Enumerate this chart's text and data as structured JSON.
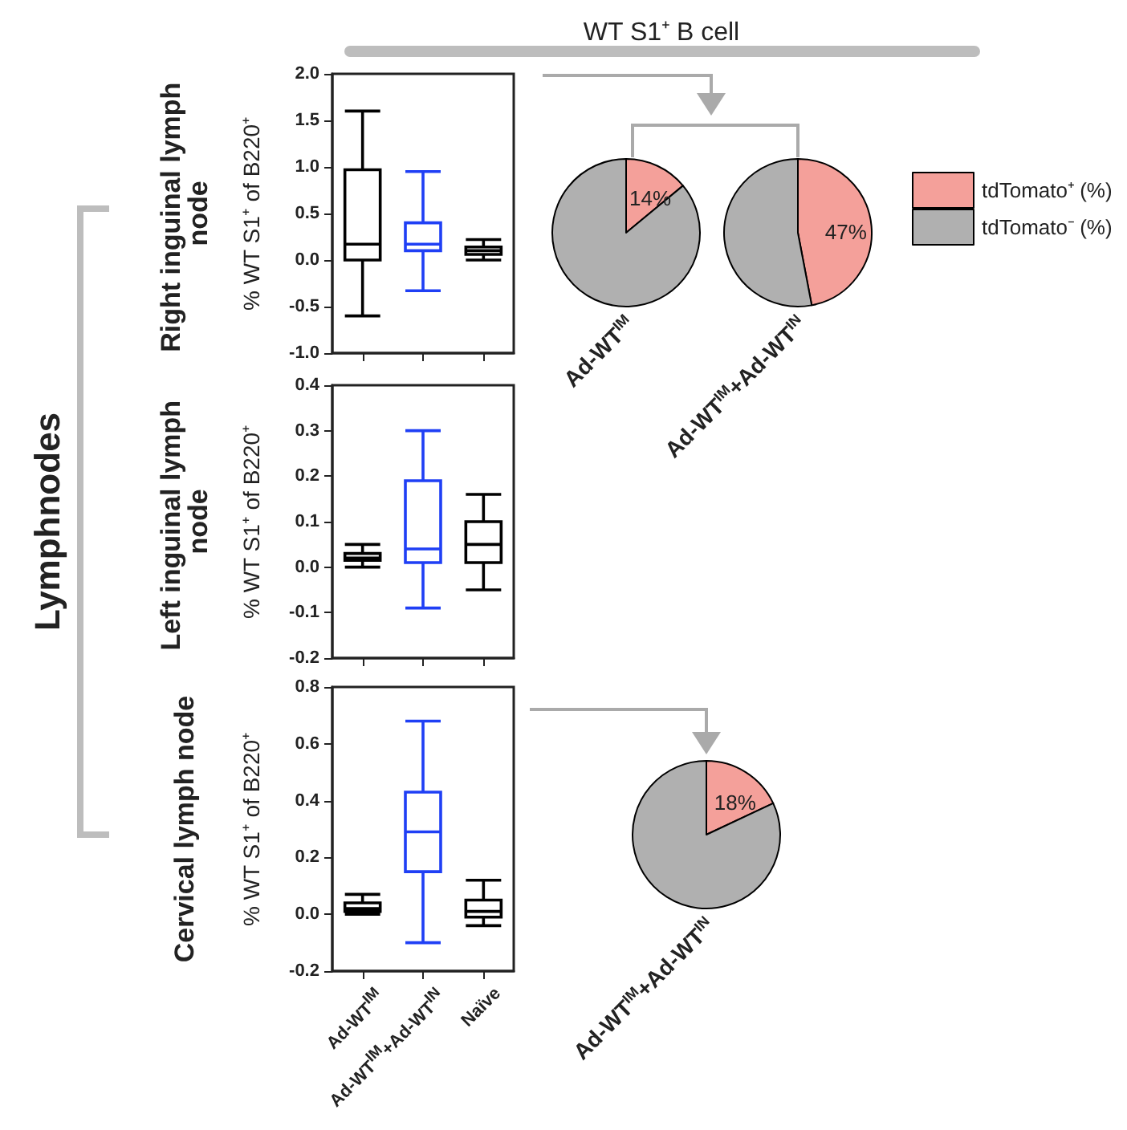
{
  "chart_data": [
    {
      "type": "box",
      "title": "Right inguinal lymph node",
      "ylabel": "% WT S1⁺ of B220⁺",
      "annotations": [
        "WT S1⁺ B cell",
        "Lymphnodes"
      ],
      "categories": [
        null,
        null,
        null
      ],
      "colors": [
        "#000000",
        "#1f3ff5",
        "#000000"
      ],
      "boxes": [
        {
          "low": -0.6,
          "q1": 0.0,
          "median": 0.17,
          "q3": 0.97,
          "high": 1.6
        },
        {
          "low": -0.33,
          "q1": 0.1,
          "median": 0.17,
          "q3": 0.4,
          "high": 0.95
        },
        {
          "low": 0.0,
          "q1": 0.06,
          "median": 0.1,
          "q3": 0.14,
          "high": 0.22
        }
      ],
      "ylim": [
        -1,
        2
      ],
      "yticks": [
        {
          "value": -1,
          "label": "-1.0"
        },
        {
          "value": -0.5,
          "label": "-0.5"
        },
        {
          "value": 0,
          "label": "0.0"
        },
        {
          "value": 0.5,
          "label": "0.5"
        },
        {
          "value": 1,
          "label": "1.0"
        },
        {
          "value": 1.5,
          "label": "1.5"
        },
        {
          "value": 2,
          "label": "2.0"
        }
      ],
      "tick_labels": "y",
      "grid": false,
      "legend": false
    },
    {
      "type": "box",
      "title": "Left inguinal lymph node",
      "ylabel": "% WT S1⁺ of B220⁺",
      "categories": [
        null,
        null,
        null
      ],
      "colors": [
        "#000000",
        "#1f3ff5",
        "#000000"
      ],
      "boxes": [
        {
          "low": 0.0,
          "q1": 0.015,
          "median": 0.02,
          "q3": 0.03,
          "high": 0.05
        },
        {
          "low": -0.09,
          "q1": 0.01,
          "median": 0.04,
          "q3": 0.19,
          "high": 0.3
        },
        {
          "low": -0.05,
          "q1": 0.01,
          "median": 0.05,
          "q3": 0.1,
          "high": 0.16
        }
      ],
      "ylim": [
        -0.2,
        0.4
      ],
      "yticks": [
        {
          "value": -0.2,
          "label": "-0.2"
        },
        {
          "value": -0.1,
          "label": "-0.1"
        },
        {
          "value": 0,
          "label": "0.0"
        },
        {
          "value": 0.1,
          "label": "0.1"
        },
        {
          "value": 0.2,
          "label": "0.2"
        },
        {
          "value": 0.3,
          "label": "0.3"
        },
        {
          "value": 0.4,
          "label": "0.4"
        }
      ],
      "tick_labels": "y",
      "grid": false,
      "legend": false
    },
    {
      "type": "box",
      "title": "Cervical lymph node",
      "ylabel": "% WT S1⁺ of B220⁺",
      "categories": [
        "Ad-WT$^{IM}$",
        "Ad-WT$^{IM}$+Ad-WT$^{IN}$",
        "Naïve"
      ],
      "colors": [
        "#000000",
        "#1f3ff5",
        "#000000"
      ],
      "boxes": [
        {
          "low": 0.0,
          "q1": 0.01,
          "median": 0.02,
          "q3": 0.04,
          "high": 0.07
        },
        {
          "low": -0.1,
          "q1": 0.15,
          "median": 0.29,
          "q3": 0.43,
          "high": 0.68
        },
        {
          "low": -0.04,
          "q1": -0.01,
          "median": 0.01,
          "q3": 0.05,
          "high": 0.12
        }
      ],
      "ylim": [
        -0.2,
        0.8
      ],
      "yticks": [
        {
          "value": -0.2,
          "label": "-0.2"
        },
        {
          "value": 0,
          "label": "0.0"
        },
        {
          "value": 0.2,
          "label": "0.2"
        },
        {
          "value": 0.4,
          "label": "0.4"
        },
        {
          "value": 0.6,
          "label": "0.6"
        },
        {
          "value": 0.8,
          "label": "0.8"
        }
      ],
      "grid": false,
      "legend": false
    },
    {
      "type": "pie",
      "title": "Ad-WT$^{IM}$",
      "categories": [
        null,
        null
      ],
      "values": [
        14,
        86
      ],
      "colors": [
        "#f4a09a",
        "#b0b0b0"
      ],
      "value_labels": [
        "14%",
        null
      ],
      "legend": false
    },
    {
      "type": "pie",
      "title": "Ad-WT$^{IM}$+Ad-WT$^{IN}$",
      "categories": [
        "tdTomato⁺ (%)",
        "tdTomato⁻ (%)"
      ],
      "values": [
        47,
        53
      ],
      "colors": [
        "#f4a09a",
        "#b0b0b0"
      ],
      "value_labels": [
        "47%",
        null
      ],
      "legend": "right"
    },
    {
      "type": "pie",
      "title": "Ad-WT$^{IM}$+Ad-WT$^{IN}$",
      "categories": [
        null,
        null
      ],
      "values": [
        18,
        82
      ],
      "colors": [
        "#f4a09a",
        "#b0b0b0"
      ],
      "value_labels": [
        "18%",
        null
      ],
      "legend": false
    }
  ]
}
